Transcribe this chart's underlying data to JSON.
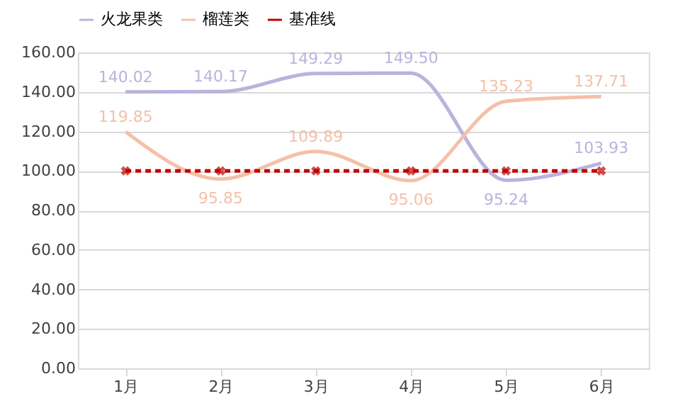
{
  "chart_data": {
    "type": "line",
    "categories": [
      "1月",
      "2月",
      "3月",
      "4月",
      "5月",
      "6月"
    ],
    "series": [
      {
        "name": "火龙果类",
        "color": "#b8b4dc",
        "values": [
          140.02,
          140.17,
          149.29,
          149.5,
          95.24,
          103.93
        ],
        "value_labels": [
          "140.02",
          "140.17",
          "149.29",
          "149.50",
          "95.24",
          "103.93"
        ]
      },
      {
        "name": "榴莲类",
        "color": "#f4c0a8",
        "values": [
          119.85,
          95.85,
          109.89,
          95.06,
          135.23,
          137.71
        ],
        "value_labels": [
          "119.85",
          "95.85",
          "109.89",
          "95.06",
          "135.23",
          "137.71"
        ]
      },
      {
        "name": "基准线",
        "color": "#c00000",
        "values": [
          100,
          100,
          100,
          100,
          100,
          100
        ],
        "marker": "cross",
        "line_style": "dashed"
      }
    ],
    "ylim": [
      0,
      160
    ],
    "yticks": [
      {
        "value": 0,
        "label": "0.00"
      },
      {
        "value": 20,
        "label": "20.00"
      },
      {
        "value": 40,
        "label": "40.00"
      },
      {
        "value": 60,
        "label": "60.00"
      },
      {
        "value": 80,
        "label": "80.00"
      },
      {
        "value": 100,
        "label": "100.00"
      },
      {
        "value": 120,
        "label": "120.00"
      },
      {
        "value": 140,
        "label": "140.00"
      },
      {
        "value": 160,
        "label": "160.00"
      }
    ],
    "grid": "y",
    "legend": "top"
  }
}
